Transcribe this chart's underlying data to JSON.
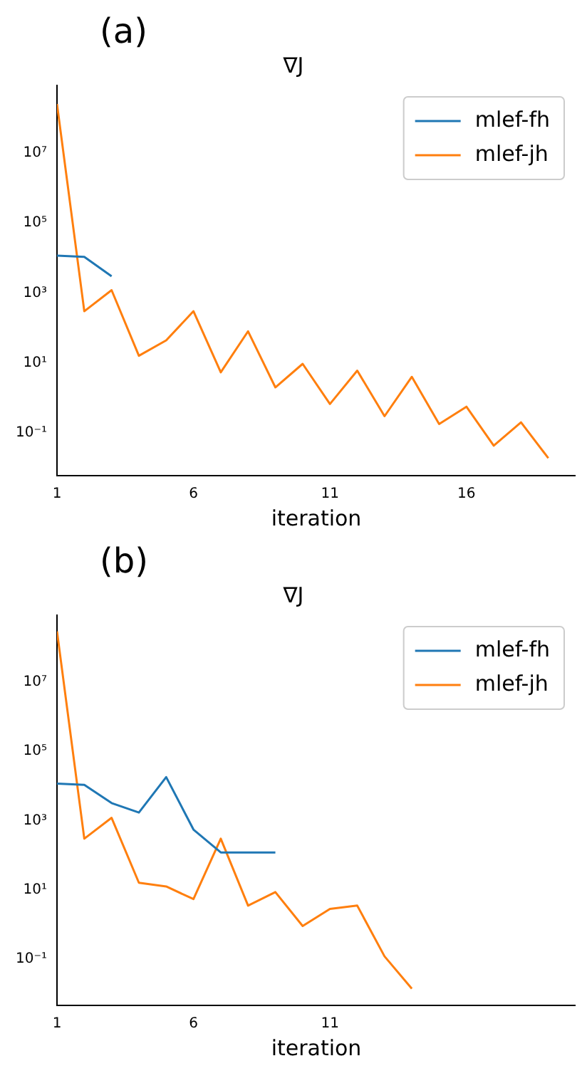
{
  "chart_data": [
    {
      "type": "line",
      "title": "∇J",
      "xlabel": "iteration",
      "annotations": [
        "(a)"
      ],
      "log": "y",
      "grid": false,
      "legend": "top right",
      "xlim": [
        1,
        20
      ],
      "xticks": [
        1,
        6,
        11,
        16
      ],
      "ylim": [
        0.006,
        850000000
      ],
      "yticks": [
        {
          "value": 0.1,
          "label": "10⁻¹"
        },
        {
          "value": 10,
          "label": "10¹"
        },
        {
          "value": 1000,
          "label": "10³"
        },
        {
          "value": 100000,
          "label": "10⁵"
        },
        {
          "value": 10000000,
          "label": "10⁷"
        }
      ],
      "series": [
        {
          "name": "mlef-fh",
          "color": "#1f77b4",
          "x": [
            1,
            2,
            3
          ],
          "values": [
            11700,
            10700,
            3000
          ]
        },
        {
          "name": "mlef-jh",
          "color": "#ff7f0e",
          "x": [
            1,
            2,
            3,
            4,
            5,
            6,
            7,
            8,
            9,
            10,
            11,
            12,
            13,
            14,
            15,
            16,
            17,
            18,
            19
          ],
          "values": [
            250000000,
            300,
            1200,
            16,
            44,
            300,
            5.4,
            80,
            2,
            9.4,
            0.67,
            6,
            0.3,
            4,
            0.18,
            0.56,
            0.043,
            0.2,
            0.019
          ]
        }
      ]
    },
    {
      "type": "line",
      "title": "∇J",
      "xlabel": "iteration",
      "annotations": [
        "(b)"
      ],
      "log": "y",
      "grid": false,
      "legend": "top right",
      "xlim": [
        1,
        20
      ],
      "xticks": [
        1,
        6,
        11
      ],
      "ylim": [
        0.0046,
        850000000
      ],
      "yticks": [
        {
          "value": 0.1,
          "label": "10⁻¹"
        },
        {
          "value": 10,
          "label": "10¹"
        },
        {
          "value": 1000,
          "label": "10³"
        },
        {
          "value": 100000,
          "label": "10⁵"
        },
        {
          "value": 10000000,
          "label": "10⁷"
        }
      ],
      "series": [
        {
          "name": "mlef-fh",
          "color": "#1f77b4",
          "x": [
            1,
            2,
            3,
            4,
            5,
            6,
            7,
            8,
            9
          ],
          "values": [
            11700,
            10700,
            3200,
            1700,
            18000,
            550,
            120,
            120,
            120
          ]
        },
        {
          "name": "mlef-jh",
          "color": "#ff7f0e",
          "x": [
            1,
            2,
            3,
            4,
            5,
            6,
            7,
            8,
            9,
            10,
            11,
            12,
            13,
            14
          ],
          "values": [
            290000000,
            300,
            1200,
            16,
            12.5,
            5.4,
            300,
            3.5,
            8.6,
            0.9,
            2.8,
            3.5,
            0.12,
            0.014
          ]
        }
      ]
    }
  ]
}
